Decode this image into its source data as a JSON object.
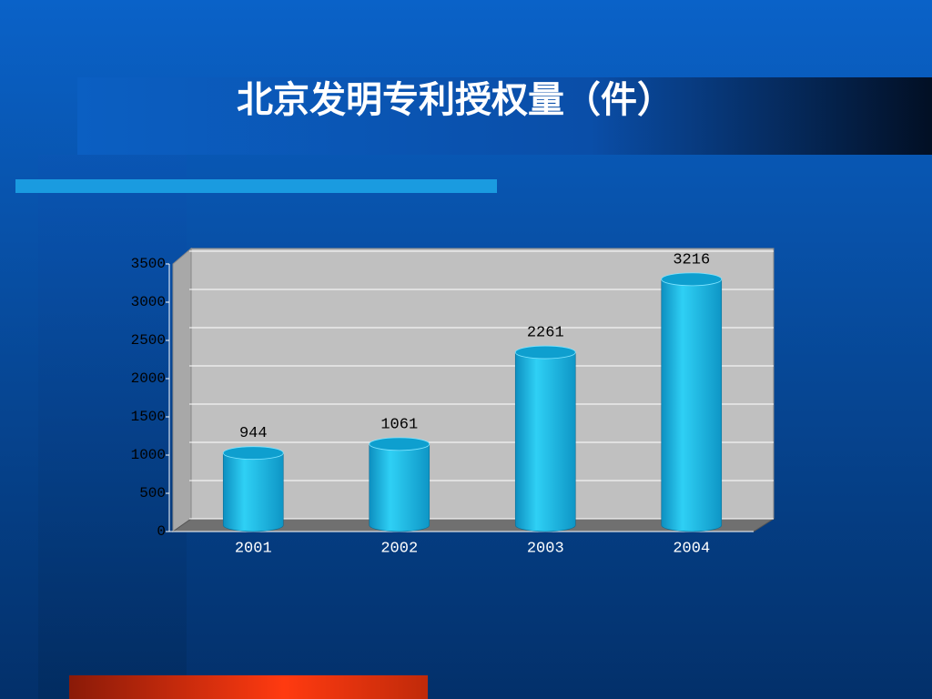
{
  "chart_data": {
    "type": "bar",
    "title": "北京发明专利授权量（件）",
    "categories": [
      "2001",
      "2002",
      "2003",
      "2004"
    ],
    "values": [
      944,
      1061,
      2261,
      3216
    ],
    "color": "#1ab8e0",
    "ylim": [
      0,
      3500
    ],
    "yticks": [
      0,
      500,
      1000,
      1500,
      2000,
      2500,
      3000,
      3500
    ],
    "grid": true
  }
}
